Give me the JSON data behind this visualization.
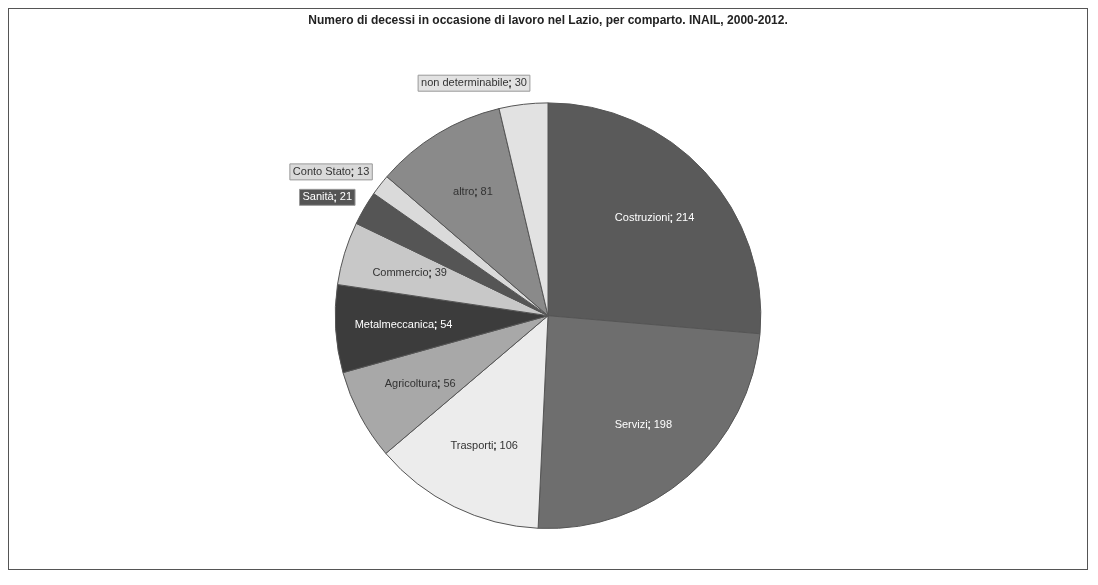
{
  "chart_data": {
    "type": "pie",
    "title": "Numero di decessi in occasione di lavoro nel Lazio, per comparto. INAIL, 2000-2012.",
    "categories": [
      "Costruzioni",
      "Servizi",
      "Trasporti",
      "Agricoltura",
      "Metalmeccanica",
      "Commercio",
      "Sanità",
      "Conto Stato",
      "altro",
      "non determinabile"
    ],
    "values": [
      214,
      198,
      106,
      56,
      54,
      39,
      21,
      13,
      81,
      30
    ],
    "data_labels": true,
    "colors": [
      "#5a5a5a",
      "#6e6e6e",
      "#ececec",
      "#a8a8a8",
      "#3c3c3c",
      "#c8c8c8",
      "#555555",
      "#dadada",
      "#8a8a8a",
      "#e2e2e2"
    ],
    "legend": false
  }
}
